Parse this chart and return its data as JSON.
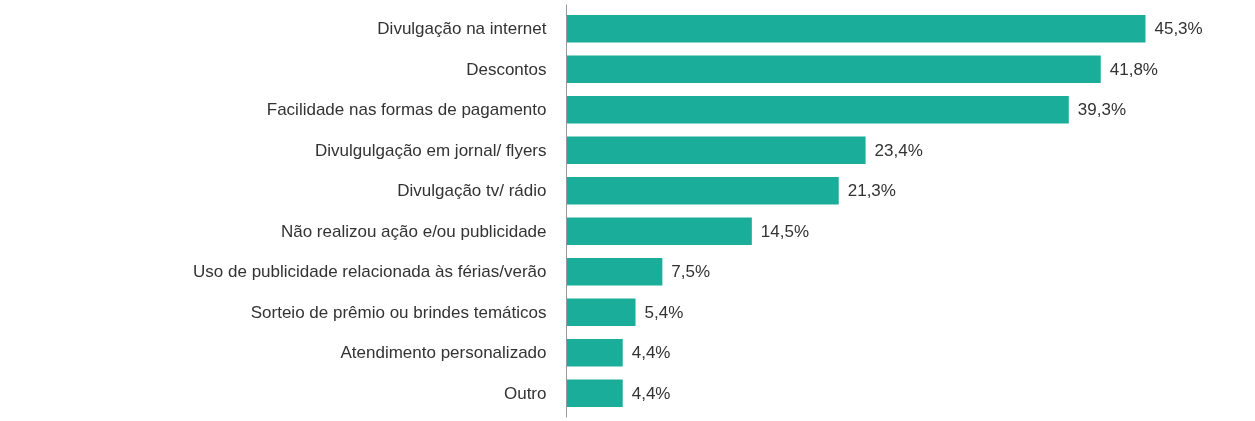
{
  "chart_data": {
    "type": "bar",
    "orientation": "horizontal",
    "categories": [
      "Divulgação na internet",
      "Descontos",
      "Facilidade nas formas de pagamento",
      "Divulgulgação em jornal/ flyers",
      "Divulgação tv/ rádio",
      "Não realizou ação e/ou publicidade",
      "Uso de publicidade relacionada às férias/verão",
      "Sorteio de prêmio ou brindes temáticos",
      "Atendimento personalizado",
      "Outro"
    ],
    "values": [
      45.3,
      41.8,
      39.3,
      23.4,
      21.3,
      14.5,
      7.5,
      5.4,
      4.4,
      4.4
    ],
    "color": "#1aae9a",
    "value_labels": [
      "45,3%",
      "41,8%",
      "39,3%",
      "23,4%",
      "21,3%",
      "14,5%",
      "7,5%",
      "5,4%",
      "4,4%",
      "4,4%"
    ]
  }
}
